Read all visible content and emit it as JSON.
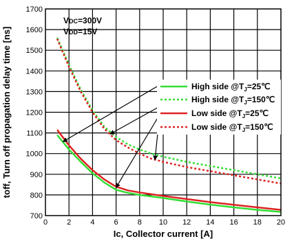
{
  "chart_data": {
    "type": "line",
    "xlabel": "Ic, Collector current [A]",
    "ylabel": "toff, Turn off propagation delay time [ns]",
    "xlim": [
      0,
      20
    ],
    "ylim": [
      700,
      1700
    ],
    "xticks": [
      0,
      2,
      4,
      6,
      8,
      10,
      12,
      14,
      16,
      18,
      20
    ],
    "yticks": [
      700,
      800,
      900,
      1000,
      1100,
      1200,
      1300,
      1400,
      1500,
      1600,
      1700
    ],
    "grid": true,
    "legend_position": "center-right",
    "annotations": [
      {
        "main": "V",
        "sub": "DC",
        "rest": "=300V"
      },
      {
        "main": "V",
        "sub": "DD",
        "rest": "=15V"
      }
    ],
    "series": [
      {
        "name": "High side @TJ=25℃",
        "label_main": "High side @T",
        "label_sub": "J",
        "label_rest": "=25℃",
        "color": "#33dd33",
        "dash": "solid",
        "x": [
          1,
          2,
          3,
          4,
          5,
          6,
          7,
          8,
          10,
          12,
          14,
          16,
          18,
          20
        ],
        "y": [
          1090,
          1020,
          960,
          905,
          860,
          825,
          810,
          800,
          785,
          768,
          753,
          740,
          728,
          718
        ]
      },
      {
        "name": "High side @TJ=150℃",
        "label_main": "High side @T",
        "label_sub": "J",
        "label_rest": "=150℃",
        "color": "#33dd33",
        "dash": "dotted",
        "x": [
          1,
          2,
          3,
          4,
          5,
          6,
          7,
          8,
          9,
          10,
          12,
          14,
          16,
          18,
          20
        ],
        "y": [
          1560,
          1430,
          1310,
          1210,
          1130,
          1080,
          1045,
          1020,
          1000,
          985,
          960,
          940,
          920,
          900,
          880
        ]
      },
      {
        "name": "Low side @TJ=25℃",
        "label_main": "Low side @T",
        "label_sub": "J",
        "label_rest": "=25℃",
        "color": "#dd2222",
        "dash": "solid",
        "x": [
          1,
          2,
          3,
          4,
          5,
          6,
          7,
          8,
          10,
          12,
          14,
          16,
          18,
          20
        ],
        "y": [
          1115,
          1040,
          975,
          920,
          875,
          840,
          822,
          812,
          795,
          780,
          765,
          752,
          740,
          728
        ]
      },
      {
        "name": "Low side @TJ=150℃",
        "label_main": "Low side @T",
        "label_sub": "J",
        "label_rest": "=150℃",
        "color": "#dd2222",
        "dash": "dotted",
        "x": [
          1,
          2,
          3,
          4,
          5,
          6,
          7,
          8,
          9,
          10,
          12,
          14,
          16,
          18,
          20
        ],
        "y": [
          1555,
          1420,
          1300,
          1200,
          1120,
          1065,
          1030,
          1000,
          975,
          960,
          935,
          915,
          895,
          875,
          855
        ]
      }
    ]
  }
}
